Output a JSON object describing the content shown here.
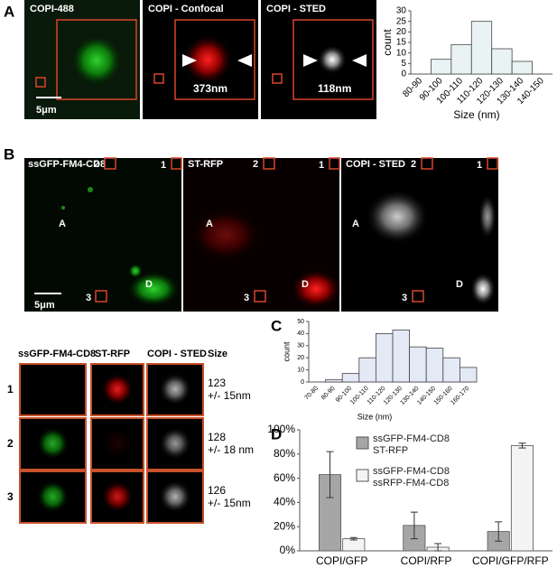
{
  "panels": {
    "a": {
      "letter": "A",
      "images": [
        "COPI-488",
        "COPI - Confocal",
        "COPI - STED"
      ],
      "scale_bar": "5μm",
      "measurements": [
        "373nm",
        "118nm"
      ]
    },
    "b": {
      "letter": "B",
      "images": [
        "ssGFP-FM4-CD8",
        "ST-RFP",
        "COPI - STED"
      ],
      "regions": [
        "1",
        "2",
        "3",
        "A",
        "D"
      ],
      "scale_bar": "5μm",
      "zoom_headers": [
        "ssGFP-FM4-CD8",
        "ST-RFP",
        "COPI - STED",
        "Size"
      ],
      "rows": [
        {
          "label": "1",
          "size": "123",
          "error": "+/- 15nm"
        },
        {
          "label": "2",
          "size": "128",
          "error": "+/- 18 nm"
        },
        {
          "label": "3",
          "size": "126",
          "error": "+/- 15nm"
        }
      ]
    },
    "c": {
      "letter": "C"
    },
    "d": {
      "letter": "D"
    }
  },
  "chart_data": [
    {
      "type": "bar",
      "categories": [
        "80-90",
        "90-100",
        "100-110",
        "110-120",
        "120-130",
        "130-140",
        "140-150"
      ],
      "values": [
        0,
        7,
        14,
        25,
        12,
        6,
        0
      ],
      "color": "#eaf3f3",
      "ylim": [
        0,
        30
      ],
      "yticks": [
        0,
        5,
        10,
        15,
        20,
        25,
        30
      ],
      "x_label": "Size (nm)",
      "y_label": "count"
    },
    {
      "type": "bar",
      "categories": [
        "70-80",
        "80-90",
        "90-100",
        "100-110",
        "110-120",
        "120-130",
        "130-140",
        "140-150",
        "150-160",
        "160-170"
      ],
      "values": [
        0,
        2,
        7,
        20,
        40,
        43,
        29,
        28,
        20,
        12
      ],
      "color": "#e3e9f5",
      "ylim": [
        0,
        50
      ],
      "yticks": [
        0,
        10,
        20,
        30,
        40,
        50
      ],
      "x_label": "Size (nm)",
      "y_label": "count"
    },
    {
      "type": "grouped_bar",
      "categories": [
        "COPI/GFP",
        "COPI/RFP",
        "COPI/GFP/RFP"
      ],
      "series": [
        {
          "name": "ssGFP-FM4-CD8 ST-RFP",
          "color": "#a6a6a6",
          "values": [
            63,
            21,
            16
          ],
          "errors": [
            19,
            11,
            8
          ]
        },
        {
          "name": "ssGFP-FM4-CD8 ssRFP-FM4-CD8",
          "color": "#f4f4f4",
          "values": [
            10,
            3,
            87
          ],
          "errors": [
            1,
            3,
            2
          ]
        }
      ],
      "ylim": [
        0,
        100
      ],
      "yticks": [
        {
          "value": 0,
          "label": "0%"
        },
        {
          "value": 20,
          "label": "20%"
        },
        {
          "value": 40,
          "label": "40%"
        },
        {
          "value": 60,
          "label": "60%"
        },
        {
          "value": 80,
          "label": "80%"
        },
        {
          "value": 100,
          "label": "100%"
        }
      ]
    }
  ]
}
